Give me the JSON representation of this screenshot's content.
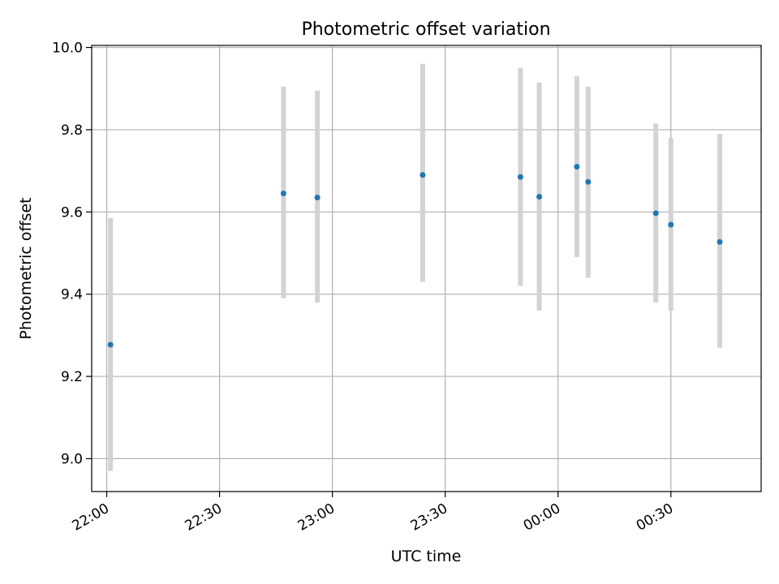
{
  "chart_data": {
    "type": "scatter",
    "title": "Photometric offset variation",
    "xlabel": "UTC time",
    "ylabel": "Photometric offset",
    "x_ticks": [
      "22:00",
      "22:30",
      "23:00",
      "23:30",
      "00:00",
      "00:30"
    ],
    "y_ticks": [
      "9.0",
      "9.2",
      "9.4",
      "9.6",
      "9.8",
      "10.0"
    ],
    "xlim": [
      "21:56",
      "00:54"
    ],
    "ylim": [
      8.92,
      10.005
    ],
    "grid": true,
    "series": [
      {
        "x": [
          "22:01",
          "22:47",
          "22:56",
          "23:24",
          "23:50",
          "23:55",
          "00:05",
          "00:08",
          "00:26",
          "00:30",
          "00:43"
        ],
        "y": [
          9.277,
          9.645,
          9.635,
          9.69,
          9.685,
          9.637,
          9.71,
          9.673,
          9.597,
          9.569,
          9.527
        ],
        "error_low": [
          8.97,
          9.39,
          9.38,
          9.43,
          9.42,
          9.36,
          9.49,
          9.44,
          9.38,
          9.36,
          9.27
        ],
        "error_high": [
          9.585,
          9.905,
          9.895,
          9.96,
          9.95,
          9.915,
          9.93,
          9.905,
          9.815,
          9.78,
          9.79
        ]
      }
    ],
    "colors": {
      "marker": "#1f77b4",
      "error_bar": "#d3d3d3",
      "grid": "#b0b0b0"
    }
  }
}
